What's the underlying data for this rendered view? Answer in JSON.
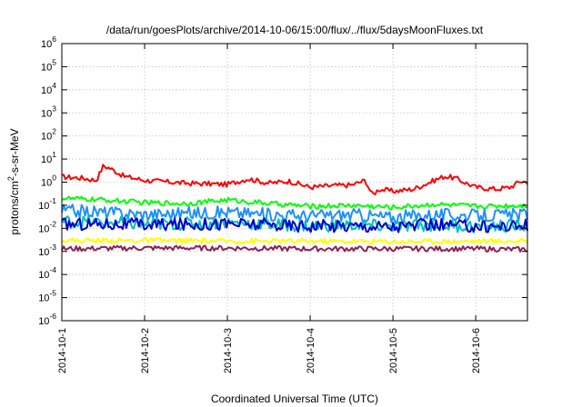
{
  "chart_data": {
    "type": "line",
    "title": "/data/run/goesPlots/archive/2014-10-06/15:00/flux/../flux/5daysMoonFluxes.txt",
    "xlabel": "Coordinated Universal Time (UTC)",
    "ylabel_parts": [
      "protons/cm",
      "2",
      "-s-sr-MeV"
    ],
    "x_scale": "time",
    "x_range": [
      "2014-10-01T00:00",
      "2014-10-06T15:00"
    ],
    "x_ticks": [
      "2014-10-1",
      "2014-10-2",
      "2014-10-3",
      "2014-10-4",
      "2014-10-5",
      "2014-10-6"
    ],
    "y_scale": "log",
    "y_range": [
      1e-06,
      1000000.0
    ],
    "y_ticks": [
      {
        "base": "10",
        "exp": "-6",
        "value": 1e-06
      },
      {
        "base": "10",
        "exp": "-5",
        "value": 1e-05
      },
      {
        "base": "10",
        "exp": "-4",
        "value": 0.0001
      },
      {
        "base": "10",
        "exp": "-3",
        "value": 0.001
      },
      {
        "base": "10",
        "exp": "-2",
        "value": 0.01
      },
      {
        "base": "10",
        "exp": "-1",
        "value": 0.1
      },
      {
        "base": "10",
        "exp": "0",
        "value": 1
      },
      {
        "base": "10",
        "exp": "1",
        "value": 10
      },
      {
        "base": "10",
        "exp": "2",
        "value": 100
      },
      {
        "base": "10",
        "exp": "3",
        "value": 1000
      },
      {
        "base": "10",
        "exp": "4",
        "value": 10000
      },
      {
        "base": "10",
        "exp": "5",
        "value": 100000
      },
      {
        "base": "10",
        "exp": "6",
        "value": 1000000
      }
    ],
    "grid": true,
    "legend": "none",
    "series": [
      {
        "color": "#ff0000",
        "points": [
          [
            "2014-10-01T00:00",
            1.7
          ],
          [
            "2014-10-01T06:00",
            1.5
          ],
          [
            "2014-10-01T10:00",
            1.2
          ],
          [
            "2014-10-01T12:00",
            5.0
          ],
          [
            "2014-10-01T14:00",
            4.0
          ],
          [
            "2014-10-01T18:00",
            1.8
          ],
          [
            "2014-10-02T00:00",
            1.2
          ],
          [
            "2014-10-02T12:00",
            0.9
          ],
          [
            "2014-10-03T00:00",
            0.8
          ],
          [
            "2014-10-03T06:00",
            1.4
          ],
          [
            "2014-10-03T12:00",
            0.9
          ],
          [
            "2014-10-03T18:00",
            1.1
          ],
          [
            "2014-10-04T00:00",
            0.6
          ],
          [
            "2014-10-04T06:00",
            0.7
          ],
          [
            "2014-10-04T12:00",
            0.75
          ],
          [
            "2014-10-04T16:00",
            1.2
          ],
          [
            "2014-10-04T18:00",
            0.28
          ],
          [
            "2014-10-04T20:00",
            0.5
          ],
          [
            "2014-10-05T00:00",
            0.4
          ],
          [
            "2014-10-05T06:00",
            0.5
          ],
          [
            "2014-10-05T12:00",
            1.2
          ],
          [
            "2014-10-05T15:00",
            1.8
          ],
          [
            "2014-10-05T18:00",
            1.5
          ],
          [
            "2014-10-06T00:00",
            0.6
          ],
          [
            "2014-10-06T06:00",
            0.5
          ],
          [
            "2014-10-06T10:00",
            0.6
          ],
          [
            "2014-10-06T13:00",
            1.1
          ],
          [
            "2014-10-06T15:00",
            1.0
          ]
        ]
      },
      {
        "color": "#00ff00",
        "points": [
          [
            "2014-10-01T00:00",
            0.2
          ],
          [
            "2014-10-01T12:00",
            0.17
          ],
          [
            "2014-10-02T00:00",
            0.13
          ],
          [
            "2014-10-02T12:00",
            0.12
          ],
          [
            "2014-10-03T00:00",
            0.17
          ],
          [
            "2014-10-03T12:00",
            0.12
          ],
          [
            "2014-10-04T00:00",
            0.09
          ],
          [
            "2014-10-04T12:00",
            0.1
          ],
          [
            "2014-10-05T00:00",
            0.08
          ],
          [
            "2014-10-05T12:00",
            0.11
          ],
          [
            "2014-10-06T00:00",
            0.09
          ],
          [
            "2014-10-06T15:00",
            0.1
          ]
        ]
      },
      {
        "color": "#1e90ff",
        "points": [
          [
            "2014-10-01T00:00",
            0.06
          ],
          [
            "2014-10-01T12:00",
            0.05
          ],
          [
            "2014-10-02T00:00",
            0.04
          ],
          [
            "2014-10-02T12:00",
            0.045
          ],
          [
            "2014-10-03T00:00",
            0.05
          ],
          [
            "2014-10-03T12:00",
            0.04
          ],
          [
            "2014-10-04T00:00",
            0.035
          ],
          [
            "2014-10-04T12:00",
            0.04
          ],
          [
            "2014-10-05T00:00",
            0.03
          ],
          [
            "2014-10-05T12:00",
            0.04
          ],
          [
            "2014-10-06T00:00",
            0.035
          ],
          [
            "2014-10-06T15:00",
            0.04
          ]
        ]
      },
      {
        "color": "#00bfbf",
        "points": [
          [
            "2014-10-01T00:00",
            0.02
          ],
          [
            "2014-10-01T12:00",
            0.018
          ],
          [
            "2014-10-02T00:00",
            0.015
          ],
          [
            "2014-10-02T12:00",
            0.016
          ],
          [
            "2014-10-03T00:00",
            0.018
          ],
          [
            "2014-10-03T12:00",
            0.015
          ],
          [
            "2014-10-04T00:00",
            0.013
          ],
          [
            "2014-10-04T12:00",
            0.014
          ],
          [
            "2014-10-05T00:00",
            0.012
          ],
          [
            "2014-10-05T12:00",
            0.014
          ],
          [
            "2014-10-06T00:00",
            0.012
          ],
          [
            "2014-10-06T15:00",
            0.013
          ]
        ]
      },
      {
        "color": "#0000cd",
        "points": [
          [
            "2014-10-01T00:00",
            0.015
          ],
          [
            "2014-10-01T12:00",
            0.016
          ],
          [
            "2014-10-02T00:00",
            0.014
          ],
          [
            "2014-10-02T12:00",
            0.015
          ],
          [
            "2014-10-03T00:00",
            0.016
          ],
          [
            "2014-10-03T12:00",
            0.014
          ],
          [
            "2014-10-04T00:00",
            0.013
          ],
          [
            "2014-10-04T12:00",
            0.013
          ],
          [
            "2014-10-05T00:00",
            0.012
          ],
          [
            "2014-10-05T12:00",
            0.014
          ],
          [
            "2014-10-06T00:00",
            0.012
          ],
          [
            "2014-10-06T15:00",
            0.013
          ]
        ]
      },
      {
        "color": "#ffff00",
        "points": [
          [
            "2014-10-01T00:00",
            0.003
          ],
          [
            "2014-10-02T00:00",
            0.003
          ],
          [
            "2014-10-03T00:00",
            0.0028
          ],
          [
            "2014-10-04T00:00",
            0.0028
          ],
          [
            "2014-10-05T00:00",
            0.0027
          ],
          [
            "2014-10-06T00:00",
            0.0028
          ],
          [
            "2014-10-06T15:00",
            0.0028
          ]
        ]
      },
      {
        "color": "#8b2252",
        "points": [
          [
            "2014-10-01T00:00",
            0.0013
          ],
          [
            "2014-10-02T00:00",
            0.0014
          ],
          [
            "2014-10-03T00:00",
            0.0014
          ],
          [
            "2014-10-04T00:00",
            0.0013
          ],
          [
            "2014-10-05T00:00",
            0.0013
          ],
          [
            "2014-10-05T12:00",
            0.0013
          ],
          [
            "2014-10-06T00:00",
            0.0013
          ],
          [
            "2014-10-06T15:00",
            0.0012
          ]
        ]
      }
    ]
  }
}
